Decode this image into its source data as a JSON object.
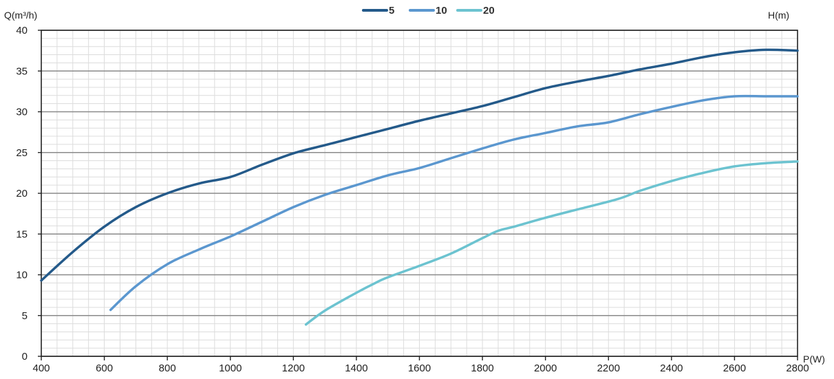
{
  "chart_data": {
    "type": "line",
    "title": "",
    "xlabel": "P(W)",
    "ylabel": "Q(m³/h)",
    "right_label": "H(m)",
    "xlim": [
      400,
      2800
    ],
    "ylim": [
      0,
      40
    ],
    "x_ticks": [
      400,
      600,
      800,
      1000,
      1200,
      1400,
      1600,
      1800,
      2000,
      2200,
      2400,
      2600,
      2800
    ],
    "y_ticks": [
      0,
      5,
      10,
      15,
      20,
      25,
      30,
      35,
      40
    ],
    "grid": true,
    "legend_position": "top-center",
    "series": [
      {
        "name": "5",
        "color": "#245a8a",
        "points": [
          [
            400,
            9.3
          ],
          [
            500,
            12.8
          ],
          [
            600,
            15.9
          ],
          [
            700,
            18.3
          ],
          [
            800,
            20.0
          ],
          [
            900,
            21.2
          ],
          [
            1000,
            22.0
          ],
          [
            1100,
            23.5
          ],
          [
            1200,
            24.9
          ],
          [
            1300,
            25.9
          ],
          [
            1400,
            26.9
          ],
          [
            1500,
            27.9
          ],
          [
            1600,
            28.9
          ],
          [
            1700,
            29.8
          ],
          [
            1800,
            30.7
          ],
          [
            1900,
            31.8
          ],
          [
            2000,
            32.9
          ],
          [
            2100,
            33.7
          ],
          [
            2200,
            34.4
          ],
          [
            2300,
            35.2
          ],
          [
            2400,
            35.9
          ],
          [
            2500,
            36.7
          ],
          [
            2600,
            37.3
          ],
          [
            2700,
            37.6
          ],
          [
            2800,
            37.5
          ]
        ]
      },
      {
        "name": "10",
        "color": "#5b97cf",
        "points": [
          [
            620,
            5.7
          ],
          [
            700,
            8.6
          ],
          [
            800,
            11.3
          ],
          [
            900,
            13.1
          ],
          [
            1000,
            14.7
          ],
          [
            1100,
            16.5
          ],
          [
            1200,
            18.3
          ],
          [
            1300,
            19.8
          ],
          [
            1400,
            21.0
          ],
          [
            1500,
            22.2
          ],
          [
            1600,
            23.1
          ],
          [
            1700,
            24.3
          ],
          [
            1800,
            25.5
          ],
          [
            1900,
            26.6
          ],
          [
            2000,
            27.4
          ],
          [
            2100,
            28.2
          ],
          [
            2200,
            28.7
          ],
          [
            2300,
            29.7
          ],
          [
            2400,
            30.6
          ],
          [
            2500,
            31.4
          ],
          [
            2600,
            31.9
          ],
          [
            2700,
            31.9
          ],
          [
            2800,
            31.9
          ]
        ]
      },
      {
        "name": "20",
        "color": "#6cc3d0",
        "points": [
          [
            1240,
            3.9
          ],
          [
            1300,
            5.6
          ],
          [
            1400,
            7.8
          ],
          [
            1460,
            9.0
          ],
          [
            1500,
            9.7
          ],
          [
            1600,
            11.1
          ],
          [
            1700,
            12.6
          ],
          [
            1800,
            14.5
          ],
          [
            1850,
            15.4
          ],
          [
            1900,
            15.9
          ],
          [
            2000,
            17.0
          ],
          [
            2100,
            18.0
          ],
          [
            2230,
            19.3
          ],
          [
            2300,
            20.3
          ],
          [
            2400,
            21.5
          ],
          [
            2500,
            22.5
          ],
          [
            2600,
            23.3
          ],
          [
            2700,
            23.7
          ],
          [
            2800,
            23.9
          ]
        ]
      }
    ]
  }
}
